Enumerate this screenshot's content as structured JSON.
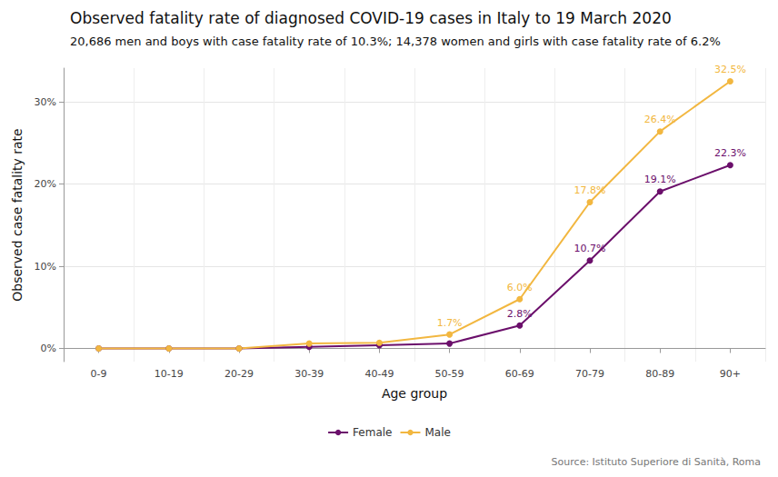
{
  "chart_data": {
    "type": "line",
    "title": "Observed fatality rate of diagnosed COVID-19 cases in Italy to 19 March 2020",
    "subtitle": "20,686 men and boys with case fatality rate of 10.3%; 14,378 women and girls with case fatality rate of 6.2%",
    "caption": "Source: Istituto Superiore di Sanità, Roma",
    "x_label": "Age group",
    "y_label": "Observed case fatality rate",
    "categories": [
      "0-9",
      "10-19",
      "20-29",
      "30-39",
      "40-49",
      "50-59",
      "60-69",
      "70-79",
      "80-89",
      "90+"
    ],
    "series": [
      {
        "name": "Female",
        "color": "#6b0f6b",
        "values": [
          0,
          0,
          0,
          0.2,
          0.4,
          0.6,
          2.8,
          10.7,
          19.1,
          22.3
        ],
        "value_labels": [
          null,
          null,
          null,
          null,
          null,
          null,
          "2.8%",
          "10.7%",
          "19.1%",
          "22.3%"
        ]
      },
      {
        "name": "Male",
        "color": "#f2b740",
        "values": [
          0,
          0,
          0,
          0.6,
          0.7,
          1.7,
          6.0,
          17.8,
          26.4,
          32.5
        ],
        "value_labels": [
          null,
          null,
          null,
          null,
          null,
          "1.7%",
          "6.0%",
          "17.8%",
          "26.4%",
          "32.5%"
        ]
      }
    ],
    "ylim": [
      -1.6,
      34.1
    ],
    "yticks": [
      {
        "value": 0,
        "label": "0%"
      },
      {
        "value": 10,
        "label": "10%"
      },
      {
        "value": 20,
        "label": "20%"
      },
      {
        "value": 30,
        "label": "30%"
      }
    ],
    "grid": true,
    "legend": "bottom",
    "data_labels": true,
    "marker": "circle"
  }
}
